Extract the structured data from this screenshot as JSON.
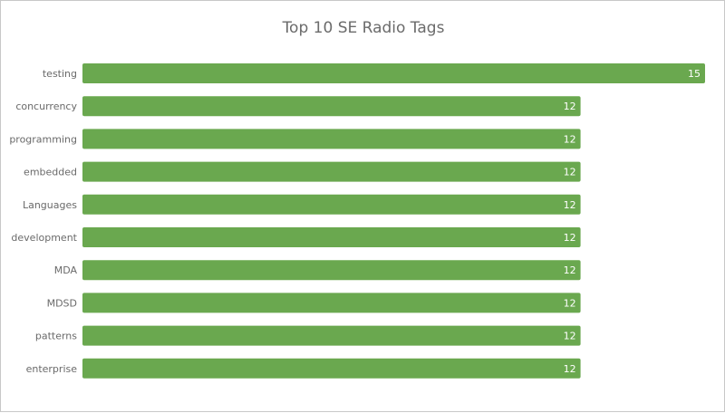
{
  "chart_data": {
    "type": "bar",
    "orientation": "horizontal",
    "title": "Top 10 SE Radio Tags",
    "categories": [
      "testing",
      "concurrency",
      "programming",
      "embedded",
      "Languages",
      "development",
      "MDA",
      "MDSD",
      "patterns",
      "enterprise"
    ],
    "values": [
      15,
      12,
      12,
      12,
      12,
      12,
      12,
      12,
      12,
      12
    ],
    "xlabel": "",
    "ylabel": "",
    "xlim": [
      0,
      15
    ],
    "grid": false,
    "legend": "none",
    "bar_color": "#6aa84f",
    "value_label_color": "#ffffff"
  }
}
